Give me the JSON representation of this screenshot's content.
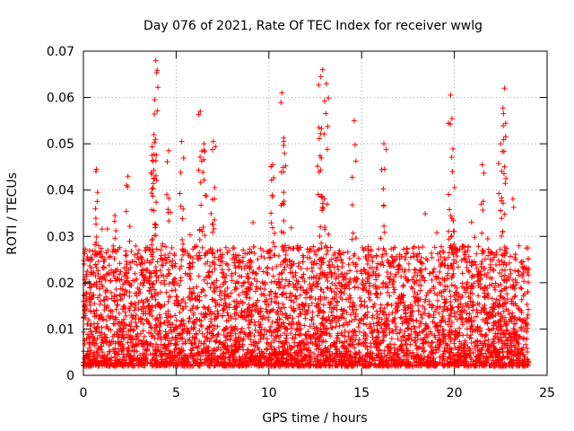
{
  "chart_data": {
    "type": "scatter",
    "title": "Day 076 of 2021, Rate Of TEC Index for receiver wwlg",
    "xlabel": "GPS time / hours",
    "ylabel": "ROTI / TECUs",
    "xlim": [
      0,
      25
    ],
    "ylim": [
      0,
      0.07
    ],
    "x_ticks": [
      0,
      5,
      10,
      15,
      20,
      25
    ],
    "y_ticks": [
      0,
      0.01,
      0.02,
      0.03,
      0.04,
      0.05,
      0.06,
      0.07
    ],
    "x_tick_labels": [
      "0",
      "5",
      "10",
      "15",
      "20",
      "25"
    ],
    "y_tick_labels": [
      "0",
      "0.01",
      "0.02",
      "0.03",
      "0.04",
      "0.05",
      "0.06",
      "0.07"
    ],
    "grid": true,
    "marker": "+",
    "color": "#ff0000",
    "series": [
      {
        "name": "ROTI",
        "x_range": [
          0,
          24
        ],
        "n_points": 4800,
        "baseline_range": [
          0.002,
          0.028
        ],
        "spikes": [
          {
            "x": 0.7,
            "y": 0.0445
          },
          {
            "x": 1.7,
            "y": 0.0345
          },
          {
            "x": 2.4,
            "y": 0.043
          },
          {
            "x": 3.7,
            "y": 0.0475
          },
          {
            "x": 3.8,
            "y": 0.052
          },
          {
            "x": 3.85,
            "y": 0.0595
          },
          {
            "x": 3.9,
            "y": 0.068
          },
          {
            "x": 4.6,
            "y": 0.0485
          },
          {
            "x": 5.3,
            "y": 0.0505
          },
          {
            "x": 6.3,
            "y": 0.057
          },
          {
            "x": 6.5,
            "y": 0.05
          },
          {
            "x": 7.0,
            "y": 0.0505
          },
          {
            "x": 10.2,
            "y": 0.0455
          },
          {
            "x": 10.7,
            "y": 0.061
          },
          {
            "x": 10.8,
            "y": 0.0505
          },
          {
            "x": 12.7,
            "y": 0.0535
          },
          {
            "x": 12.8,
            "y": 0.0645
          },
          {
            "x": 12.9,
            "y": 0.066
          },
          {
            "x": 13.1,
            "y": 0.063
          },
          {
            "x": 14.6,
            "y": 0.055
          },
          {
            "x": 16.2,
            "y": 0.05
          },
          {
            "x": 19.8,
            "y": 0.0605
          },
          {
            "x": 19.9,
            "y": 0.044
          },
          {
            "x": 21.5,
            "y": 0.0455
          },
          {
            "x": 22.5,
            "y": 0.05
          },
          {
            "x": 22.65,
            "y": 0.0565
          },
          {
            "x": 22.7,
            "y": 0.062
          }
        ]
      }
    ]
  }
}
